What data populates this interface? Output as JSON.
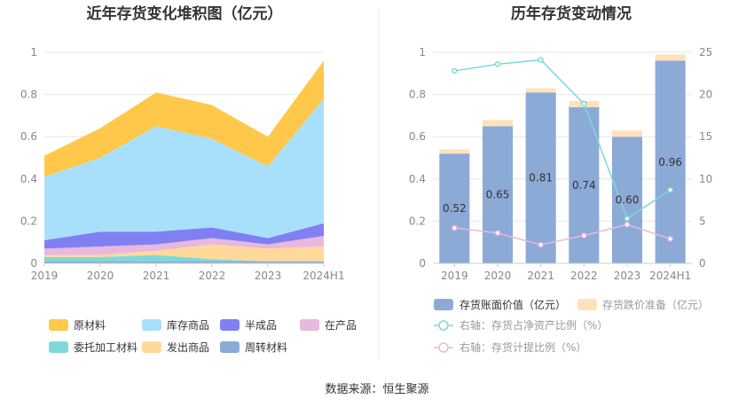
{
  "left_chart": {
    "title": "近年存货变化堆积图（亿元）",
    "legend": [
      {
        "label": "原材料",
        "color": "#ffc84a"
      },
      {
        "label": "库存商品",
        "color": "#a8e0fb"
      },
      {
        "label": "半成品",
        "color": "#8080f2"
      },
      {
        "label": "在产品",
        "color": "#e9b8dd"
      },
      {
        "label": "委托加工材料",
        "color": "#7fd8d8"
      },
      {
        "label": "发出商品",
        "color": "#ffd99a"
      },
      {
        "label": "周转材料",
        "color": "#8caad6"
      }
    ]
  },
  "right_chart": {
    "title": "历年存货变动情况",
    "legend": [
      {
        "label": "存货账面价值（亿元）",
        "color": "#8caad6"
      },
      {
        "label": "存货跌价准备（亿元）",
        "color": "#fde3bd"
      },
      {
        "label": "右轴：存货占净资产比例（%）",
        "color": "#7fd8d8"
      },
      {
        "label": "右轴：存货计提比例（%）",
        "color": "#e9b8dd"
      }
    ]
  },
  "source": "数据来源：恒生聚源",
  "chart_data": [
    {
      "type": "area",
      "stacked": true,
      "title": "近年存货变化堆积图（亿元）",
      "categories": [
        "2019",
        "2020",
        "2021",
        "2022",
        "2023",
        "2024H1"
      ],
      "ylim": [
        0,
        1
      ],
      "yticks": [
        "0",
        "0.2",
        "0.4",
        "0.6",
        "0.8",
        "1"
      ],
      "grid": true,
      "legend_position": "bottom",
      "series": [
        {
          "name": "周转材料",
          "color": "#8caad6",
          "values": [
            0.01,
            0.01,
            0.01,
            0.01,
            0.01,
            0.01
          ]
        },
        {
          "name": "委托加工材料",
          "color": "#7fd8d8",
          "values": [
            0.02,
            0.02,
            0.03,
            0.01,
            0.0,
            0.0
          ]
        },
        {
          "name": "发出商品",
          "color": "#ffd99a",
          "values": [
            0.01,
            0.01,
            0.02,
            0.07,
            0.06,
            0.07
          ]
        },
        {
          "name": "在产品",
          "color": "#e9b8dd",
          "values": [
            0.03,
            0.04,
            0.03,
            0.03,
            0.02,
            0.05
          ]
        },
        {
          "name": "半成品",
          "color": "#8080f2",
          "values": [
            0.04,
            0.07,
            0.06,
            0.05,
            0.03,
            0.06
          ]
        },
        {
          "name": "库存商品",
          "color": "#a8e0fb",
          "values": [
            0.3,
            0.35,
            0.5,
            0.42,
            0.34,
            0.59
          ]
        },
        {
          "name": "原材料",
          "color": "#ffc84a",
          "values": [
            0.1,
            0.14,
            0.16,
            0.16,
            0.14,
            0.18
          ]
        }
      ]
    },
    {
      "type": "bar",
      "stacked": true,
      "title": "历年存货变动情况",
      "categories": [
        "2019",
        "2020",
        "2021",
        "2022",
        "2023",
        "2024H1"
      ],
      "ylim": [
        0,
        1
      ],
      "yticks": [
        "0",
        "0.2",
        "0.4",
        "0.6",
        "0.8",
        "1"
      ],
      "y2lim": [
        0,
        25
      ],
      "y2ticks": [
        "0",
        "5",
        "10",
        "15",
        "20",
        "25"
      ],
      "grid": true,
      "legend_position": "bottom",
      "series": [
        {
          "name": "存货账面价值（亿元）",
          "color": "#8caad6",
          "axis": "left",
          "kind": "bar",
          "values": [
            0.52,
            0.65,
            0.81,
            0.74,
            0.6,
            0.96
          ],
          "labels": [
            "0.52",
            "0.65",
            "0.81",
            "0.74",
            "0.60",
            "0.96"
          ]
        },
        {
          "name": "存货跌价准备（亿元）",
          "color": "#fde3bd",
          "axis": "left",
          "kind": "bar",
          "values": [
            0.02,
            0.03,
            0.02,
            0.03,
            0.03,
            0.03
          ]
        },
        {
          "name": "右轴：存货占净资产比例（%）",
          "color": "#7fd8d8",
          "axis": "right",
          "kind": "line",
          "values": [
            22.8,
            23.6,
            24.1,
            18.9,
            5.3,
            8.7
          ]
        },
        {
          "name": "右轴：存货计提比例（%）",
          "color": "#e9b8dd",
          "axis": "right",
          "kind": "line",
          "values": [
            4.2,
            3.6,
            2.2,
            3.3,
            4.6,
            2.9
          ]
        }
      ]
    }
  ]
}
